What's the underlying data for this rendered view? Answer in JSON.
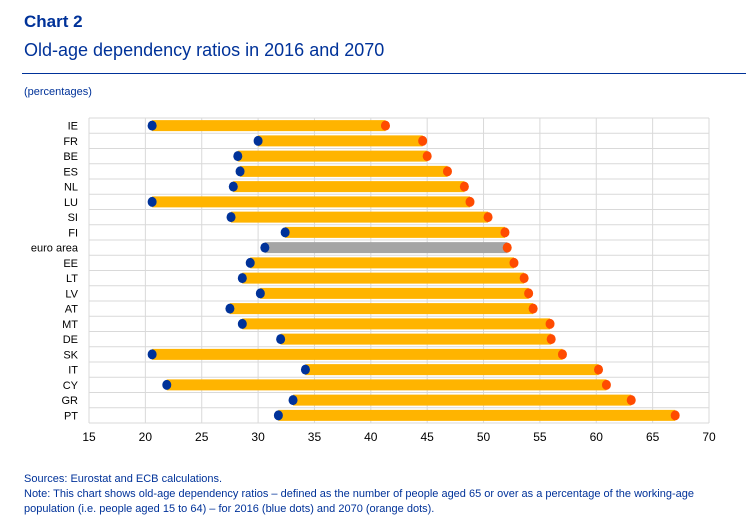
{
  "header": {
    "title": "Chart 2",
    "subtitle": "Old-age dependency ratios in 2016 and 2070",
    "unit": "(percentages)"
  },
  "footer": {
    "sources": "Sources: Eurostat and ECB calculations.",
    "note": "Note: This chart shows old-age dependency ratios – defined as the number of people aged 65 or over as a percentage of the working-age population (i.e. people aged 15 to 64) – for 2016 (blue dots) and 2070 (orange dots)."
  },
  "colors": {
    "bar": "#FFB400",
    "bar_highlight": "#A5A5A5",
    "dot_2016": "#003299",
    "dot_2070": "#FF4B00",
    "grid": "#D9D9D9"
  },
  "chart_data": {
    "type": "dumbbell",
    "title": "Old-age dependency ratios in 2016 and 2070",
    "xlabel": "",
    "ylabel": "",
    "xlim": [
      15,
      70
    ],
    "xticks": [
      15,
      20,
      25,
      30,
      35,
      40,
      45,
      50,
      55,
      60,
      65,
      70
    ],
    "grid": true,
    "highlight": "euro area",
    "categories": [
      "IE",
      "FR",
      "BE",
      "ES",
      "NL",
      "LU",
      "SI",
      "FI",
      "euro area",
      "EE",
      "LT",
      "LV",
      "AT",
      "MT",
      "DE",
      "SK",
      "IT",
      "CY",
      "GR",
      "PT"
    ],
    "series": [
      {
        "name": "2016",
        "values": [
          20.6,
          30.0,
          28.2,
          28.4,
          27.8,
          20.6,
          27.6,
          32.4,
          30.6,
          29.3,
          28.6,
          30.2,
          27.5,
          28.6,
          32.0,
          20.6,
          34.2,
          21.9,
          33.1,
          31.8
        ]
      },
      {
        "name": "2070",
        "values": [
          41.3,
          44.6,
          45.0,
          46.8,
          48.3,
          48.8,
          50.4,
          51.9,
          52.1,
          52.7,
          53.6,
          54.0,
          54.4,
          55.9,
          56.0,
          57.0,
          60.2,
          60.9,
          63.1,
          67.0
        ]
      }
    ]
  }
}
